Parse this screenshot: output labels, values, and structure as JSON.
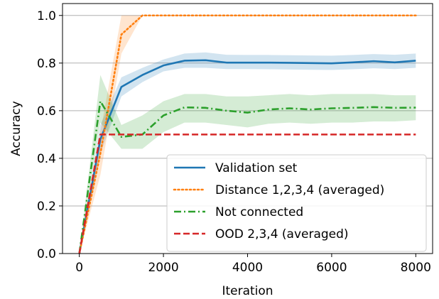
{
  "chart_data": {
    "type": "line",
    "xlabel": "Iteration",
    "ylabel": "Accuracy",
    "xlim": [
      -400,
      8400
    ],
    "ylim": [
      0.0,
      1.05
    ],
    "xticks": [
      0,
      2000,
      4000,
      6000,
      8000
    ],
    "xtick_labels": [
      "0",
      "2000",
      "4000",
      "6000",
      "8000"
    ],
    "yticks": [
      0.0,
      0.2,
      0.4,
      0.6,
      0.8,
      1.0
    ],
    "ytick_labels": [
      "0.0",
      "0.2",
      "0.4",
      "0.6",
      "0.8",
      "1.0"
    ],
    "grid": "horizontal",
    "legend_position": "lower-right",
    "series": [
      {
        "name": "Validation set",
        "color": "#1f77b4",
        "style": "solid",
        "x": [
          0,
          500,
          1000,
          1500,
          2000,
          2500,
          3000,
          3500,
          4000,
          4500,
          5000,
          5500,
          6000,
          6500,
          7000,
          7500,
          8000
        ],
        "y": [
          0.0,
          0.48,
          0.7,
          0.75,
          0.79,
          0.81,
          0.812,
          0.802,
          0.802,
          0.802,
          0.801,
          0.8,
          0.799,
          0.803,
          0.808,
          0.803,
          0.81
        ],
        "lower": [
          0.0,
          0.42,
          0.66,
          0.72,
          0.765,
          0.78,
          0.78,
          0.775,
          0.775,
          0.774,
          0.773,
          0.772,
          0.771,
          0.774,
          0.778,
          0.775,
          0.78
        ],
        "upper": [
          0.0,
          0.54,
          0.74,
          0.78,
          0.815,
          0.84,
          0.845,
          0.835,
          0.834,
          0.834,
          0.833,
          0.832,
          0.831,
          0.834,
          0.838,
          0.835,
          0.84
        ]
      },
      {
        "name": "Distance 1,2,3,4 (averaged)",
        "color": "#ff7f0e",
        "style": "dotted",
        "x": [
          0,
          500,
          1000,
          1500,
          2000,
          2500,
          3000,
          3500,
          4000,
          4500,
          5000,
          5500,
          6000,
          6500,
          7000,
          7500,
          8000
        ],
        "y": [
          0.0,
          0.42,
          0.92,
          1.0,
          1.0,
          1.0,
          1.0,
          1.0,
          1.0,
          1.0,
          1.0,
          1.0,
          1.0,
          1.0,
          1.0,
          1.0,
          1.0
        ],
        "lower": [
          0.0,
          0.33,
          0.84,
          1.0,
          1.0,
          1.0,
          1.0,
          1.0,
          1.0,
          1.0,
          1.0,
          1.0,
          1.0,
          1.0,
          1.0,
          1.0,
          1.0
        ],
        "upper": [
          0.0,
          0.51,
          1.0,
          1.0,
          1.0,
          1.0,
          1.0,
          1.0,
          1.0,
          1.0,
          1.0,
          1.0,
          1.0,
          1.0,
          1.0,
          1.0,
          1.0
        ]
      },
      {
        "name": "Not connected",
        "color": "#2ca02c",
        "style": "dashdot",
        "x": [
          0,
          500,
          1000,
          1500,
          2000,
          2500,
          3000,
          3500,
          4000,
          4500,
          5000,
          5500,
          6000,
          6500,
          7000,
          7500,
          8000
        ],
        "y": [
          0.0,
          0.64,
          0.49,
          0.5,
          0.58,
          0.614,
          0.612,
          0.6,
          0.592,
          0.605,
          0.61,
          0.605,
          0.61,
          0.612,
          0.615,
          0.612,
          0.613
        ],
        "lower": [
          0.0,
          0.55,
          0.44,
          0.44,
          0.51,
          0.55,
          0.55,
          0.54,
          0.53,
          0.545,
          0.55,
          0.545,
          0.55,
          0.55,
          0.555,
          0.555,
          0.56
        ],
        "upper": [
          0.0,
          0.75,
          0.54,
          0.58,
          0.64,
          0.67,
          0.67,
          0.66,
          0.66,
          0.665,
          0.67,
          0.665,
          0.67,
          0.67,
          0.67,
          0.665,
          0.665
        ]
      },
      {
        "name": "OOD 2,3,4 (averaged)",
        "color": "#d62728",
        "style": "dashed",
        "x": [
          0,
          500,
          1000,
          1500,
          2000,
          2500,
          3000,
          3500,
          4000,
          4500,
          5000,
          5500,
          6000,
          6500,
          7000,
          7500,
          8000
        ],
        "y": [
          0.0,
          0.5,
          0.5,
          0.5,
          0.5,
          0.5,
          0.5,
          0.5,
          0.5,
          0.5,
          0.5,
          0.5,
          0.5,
          0.5,
          0.5,
          0.5,
          0.5
        ]
      }
    ]
  }
}
